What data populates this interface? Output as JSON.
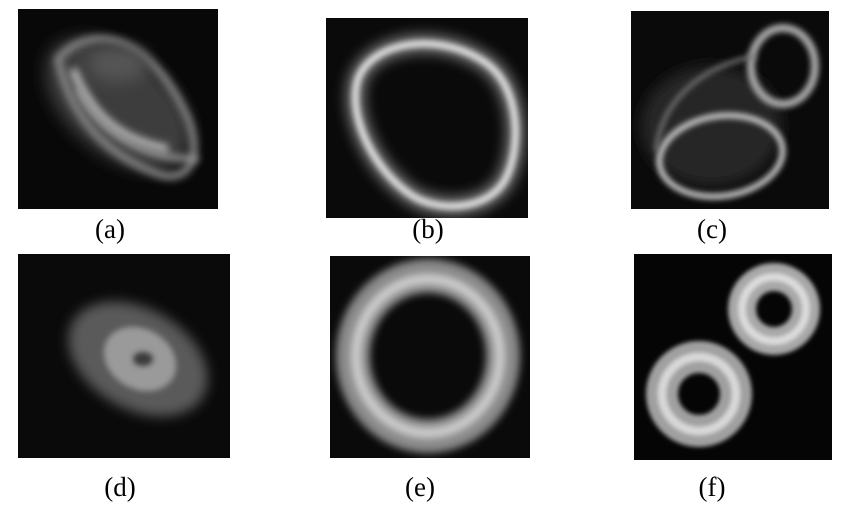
{
  "panels": [
    {
      "id": "a",
      "caption": "(a)"
    },
    {
      "id": "b",
      "caption": "(b)"
    },
    {
      "id": "c",
      "caption": "(c)"
    },
    {
      "id": "d",
      "caption": "(d)"
    },
    {
      "id": "e",
      "caption": "(e)"
    },
    {
      "id": "f",
      "caption": "(f)"
    }
  ]
}
